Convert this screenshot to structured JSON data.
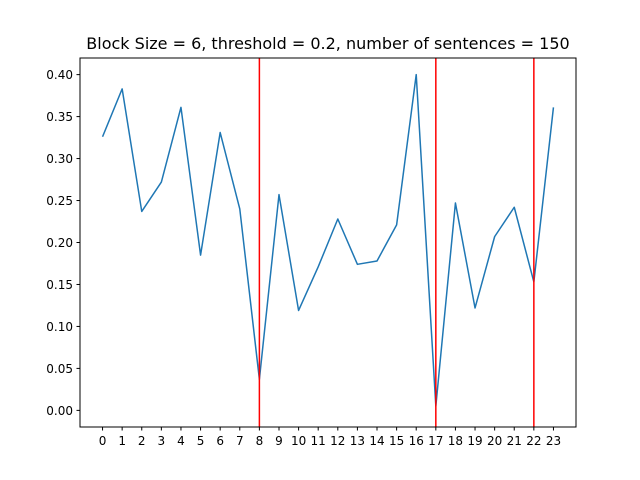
{
  "chart_data": {
    "type": "line",
    "title": "Block Size = 6, threshold = 0.2, number of sentences = 150",
    "xlabel": "",
    "ylabel": "",
    "x": [
      0,
      1,
      2,
      3,
      4,
      5,
      6,
      7,
      8,
      9,
      10,
      11,
      12,
      13,
      14,
      15,
      16,
      17,
      18,
      19,
      20,
      21,
      22,
      23
    ],
    "x_tick_labels": [
      "0",
      "1",
      "2",
      "3",
      "4",
      "5",
      "6",
      "7",
      "8",
      "9",
      "10",
      "11",
      "12",
      "13",
      "14",
      "15",
      "16",
      "17",
      "18",
      "19",
      "20",
      "21",
      "22",
      "23"
    ],
    "series": [
      {
        "color": "#1f77b4",
        "values": [
          0.326,
          0.383,
          0.237,
          0.272,
          0.361,
          0.185,
          0.331,
          0.24,
          0.037,
          0.257,
          0.119,
          0.171,
          0.228,
          0.174,
          0.178,
          0.221,
          0.4,
          0.005,
          0.247,
          0.122,
          0.207,
          0.242,
          0.153,
          0.361
        ]
      }
    ],
    "vertical_lines": {
      "color": "#ff0000",
      "x": [
        8,
        17,
        22
      ]
    },
    "xlim": [
      -1.15,
      24.15
    ],
    "ylim": [
      -0.0198,
      0.4198
    ],
    "y_ticks": [
      0.0,
      0.05,
      0.1,
      0.15,
      0.2,
      0.25,
      0.3,
      0.35,
      0.4
    ],
    "y_tick_labels": [
      "0.00",
      "0.05",
      "0.10",
      "0.15",
      "0.20",
      "0.25",
      "0.30",
      "0.35",
      "0.40"
    ],
    "grid": false,
    "legend": "none"
  }
}
